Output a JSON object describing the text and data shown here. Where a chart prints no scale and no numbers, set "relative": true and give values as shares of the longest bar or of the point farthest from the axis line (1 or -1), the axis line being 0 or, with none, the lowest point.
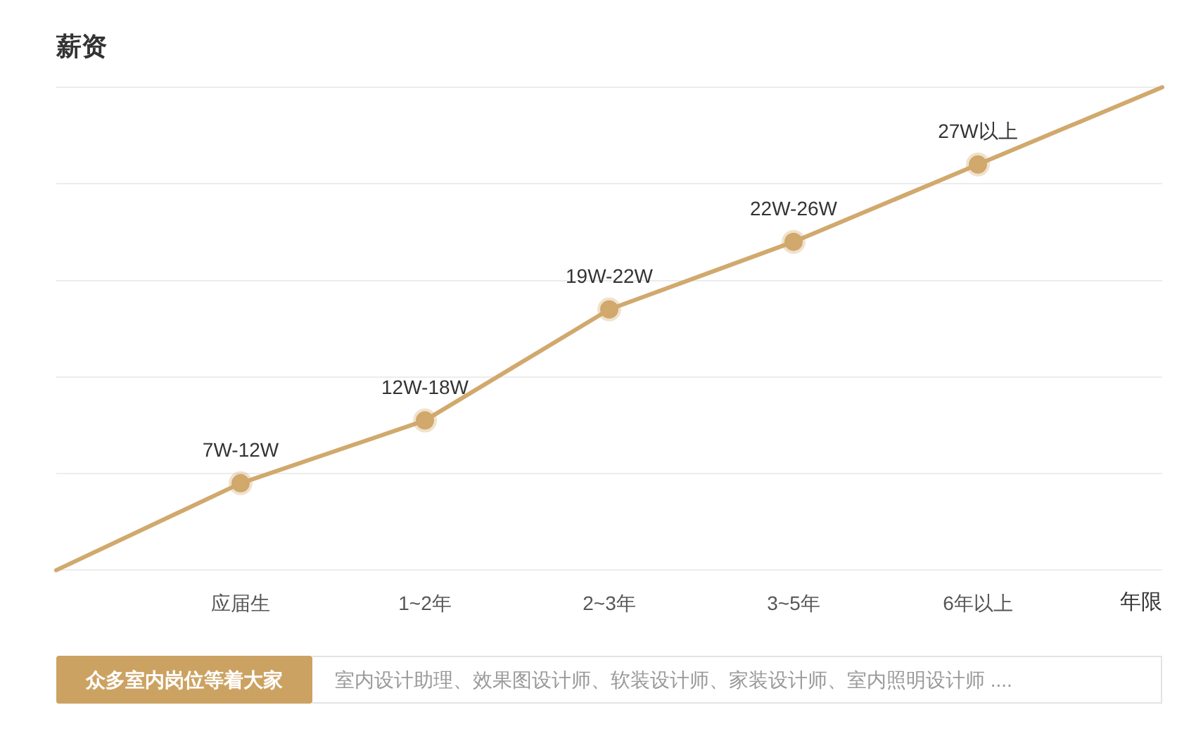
{
  "chart_data": {
    "type": "line",
    "title": "薪资",
    "xlabel": "年限",
    "categories": [
      null,
      "应届生",
      "1~2年",
      "2~3年",
      "3~5年",
      "6年以上",
      null
    ],
    "series": [
      {
        "color": "#d1a96d",
        "values": [
          0,
          0.18,
          0.31,
          0.54,
          0.68,
          0.84,
          1
        ]
      }
    ],
    "relative": true,
    "grid": "y",
    "marker": "circle",
    "tick_labels": "x",
    "annotations": [
      {
        "text": "7W-12W",
        "x": "应届生",
        "y": 0.18
      },
      {
        "text": "12W-18W",
        "x": "1~2年",
        "y": 0.31
      },
      {
        "text": "19W-22W",
        "x": "2~3年",
        "y": 0.54
      },
      {
        "text": "22W-26W",
        "x": "3~5年",
        "y": 0.68
      },
      {
        "text": "27W以上",
        "x": "6年以上",
        "y": 0.84
      },
      "众多室内岗位等着大家",
      "室内设计助理、效果图设计师、软装设计师、家装设计师、室内照明设计师 ...."
    ]
  }
}
